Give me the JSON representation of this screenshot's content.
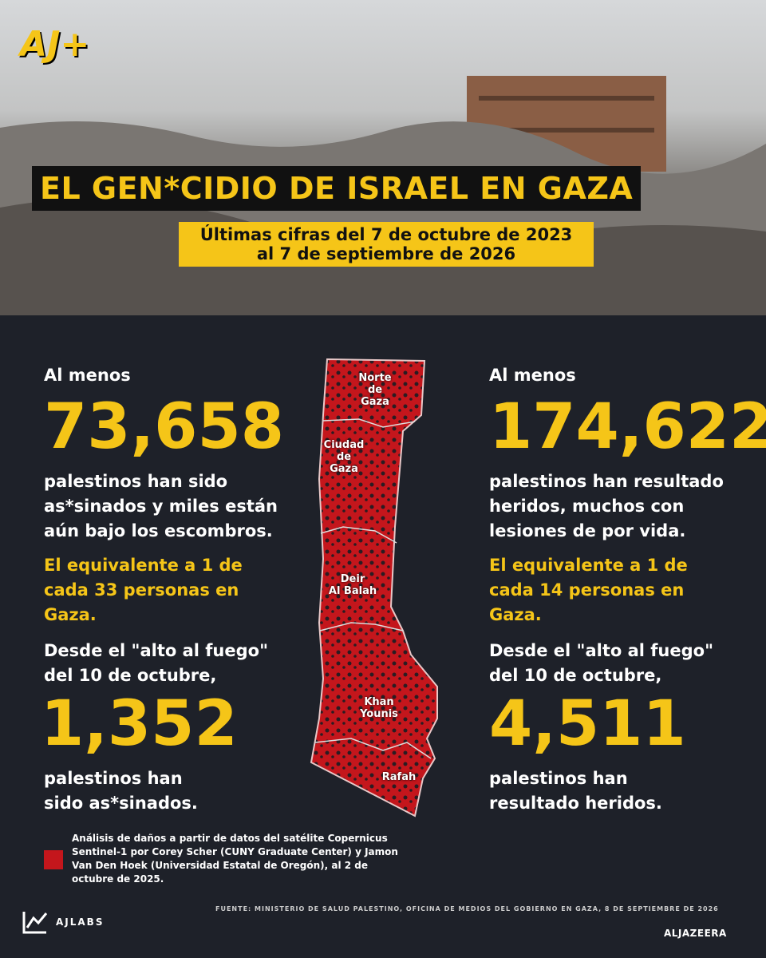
{
  "logo": "AJ+",
  "header": {
    "title": "EL GEN*CIDIO DE ISRAEL EN GAZA",
    "subtitle": [
      "Últimas cifras del 7 de octubre de 2023",
      "al 7 de septiembre de 2026"
    ]
  },
  "left": {
    "intro": "Al menos",
    "number": "73,658",
    "body": [
      "palestinos han sido",
      "as*sinados y miles están",
      "aún bajo los escombros."
    ],
    "ratio": [
      "El equivalente a 1 de",
      "cada 33 personas en",
      "Gaza."
    ],
    "since": [
      "Desde el \"alto al fuego\"",
      "del 10 de octubre,"
    ],
    "since_number": "1,352",
    "since_body": [
      "palestinos han",
      "sido as*sinados."
    ]
  },
  "right": {
    "intro": "Al menos",
    "number": "174,622",
    "body": [
      "palestinos han resultado",
      "heridos, muchos con",
      "lesiones de por vida."
    ],
    "ratio": [
      "El equivalente a 1 de",
      "cada 14 personas en",
      "Gaza."
    ],
    "since": [
      "Desde el \"alto al fuego\"",
      "del 10 de octubre,"
    ],
    "since_number": "4,511",
    "since_body": [
      "palestinos han",
      "resultado heridos."
    ]
  },
  "map": {
    "labels": [
      [
        "Norte",
        "de",
        "Gaza"
      ],
      [
        "Ciudad",
        "de",
        "Gaza"
      ],
      [
        "Deir",
        "Al Balah"
      ],
      [
        "Khan",
        "Younis"
      ],
      [
        "Rafah"
      ]
    ]
  },
  "legend": [
    "Análisis de daños a partir de datos del satélite Copernicus",
    "Sentinel-1 por Corey Scher (CUNY Graduate Center) y Jamon",
    "Van Den Hoek (Universidad Estatal de Oregón), al 2 de",
    "octubre de 2025."
  ],
  "source": "FUENTE: MINISTERIO DE SALUD PALESTINO, OFICINA DE MEDIOS DEL GOBIERNO EN GAZA, 8 DE SEPTIEMBRE DE 2026",
  "footer": {
    "brand": "AJLABS",
    "network": "ALJAZEERA"
  }
}
